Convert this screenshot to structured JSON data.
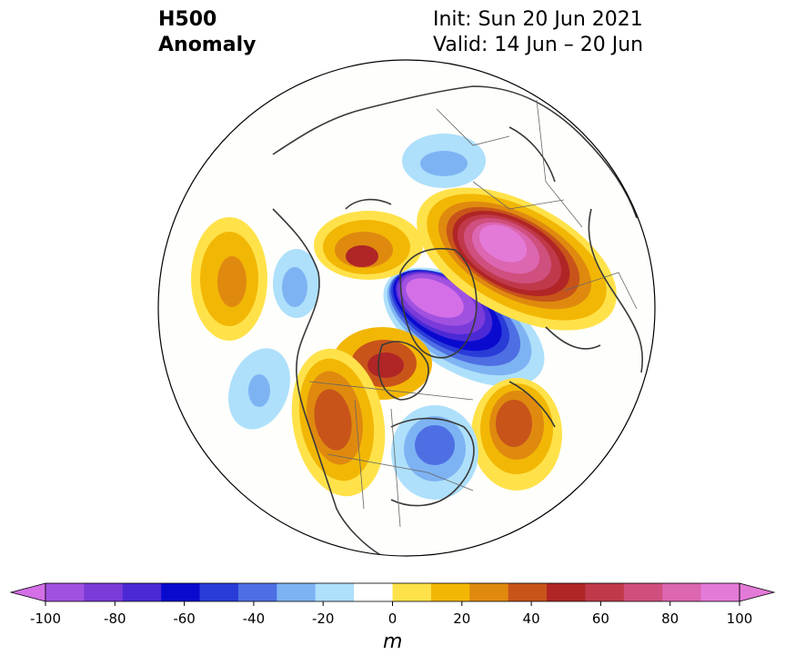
{
  "title": {
    "field": "H500",
    "subtitle": "Anomaly",
    "init": "Init: Sun 20 Jun 2021",
    "valid": "Valid: 14 Jun – 20 Jun"
  },
  "colorbar": {
    "unit": "m",
    "ticks": [
      "-100",
      "-80",
      "-60",
      "-40",
      "-20",
      "0",
      "20",
      "40",
      "60",
      "80",
      "100"
    ],
    "levels": [
      -100,
      -90,
      -80,
      -70,
      -60,
      -50,
      -40,
      -30,
      -20,
      -10,
      10,
      20,
      30,
      40,
      50,
      60,
      70,
      80,
      90,
      100
    ],
    "colors": [
      "#d46fe8",
      "#a151e0",
      "#7a3bd9",
      "#4b2ad6",
      "#0a0acf",
      "#2a3cd8",
      "#4e6fe3",
      "#7eb3f3",
      "#aee0fb",
      "#ffffff",
      "#ffe24a",
      "#f2b705",
      "#df8a0f",
      "#c8541a",
      "#b02525",
      "#c0394b",
      "#cf4f7e",
      "#dc66b0",
      "#e47ad8"
    ]
  },
  "map": {
    "projection": "north polar stereographic",
    "anomaly_centers": [
      {
        "name": "arctic-low",
        "value": -100
      },
      {
        "name": "siberia-high",
        "value": 100
      },
      {
        "name": "pacific-high",
        "value": 40
      },
      {
        "name": "western-canada-high",
        "value": 50
      },
      {
        "name": "eastern-us-low",
        "value": -40
      },
      {
        "name": "atlantic-high",
        "value": 50
      },
      {
        "name": "alaska-low",
        "value": -30
      },
      {
        "name": "europe-low",
        "value": -30
      }
    ]
  }
}
